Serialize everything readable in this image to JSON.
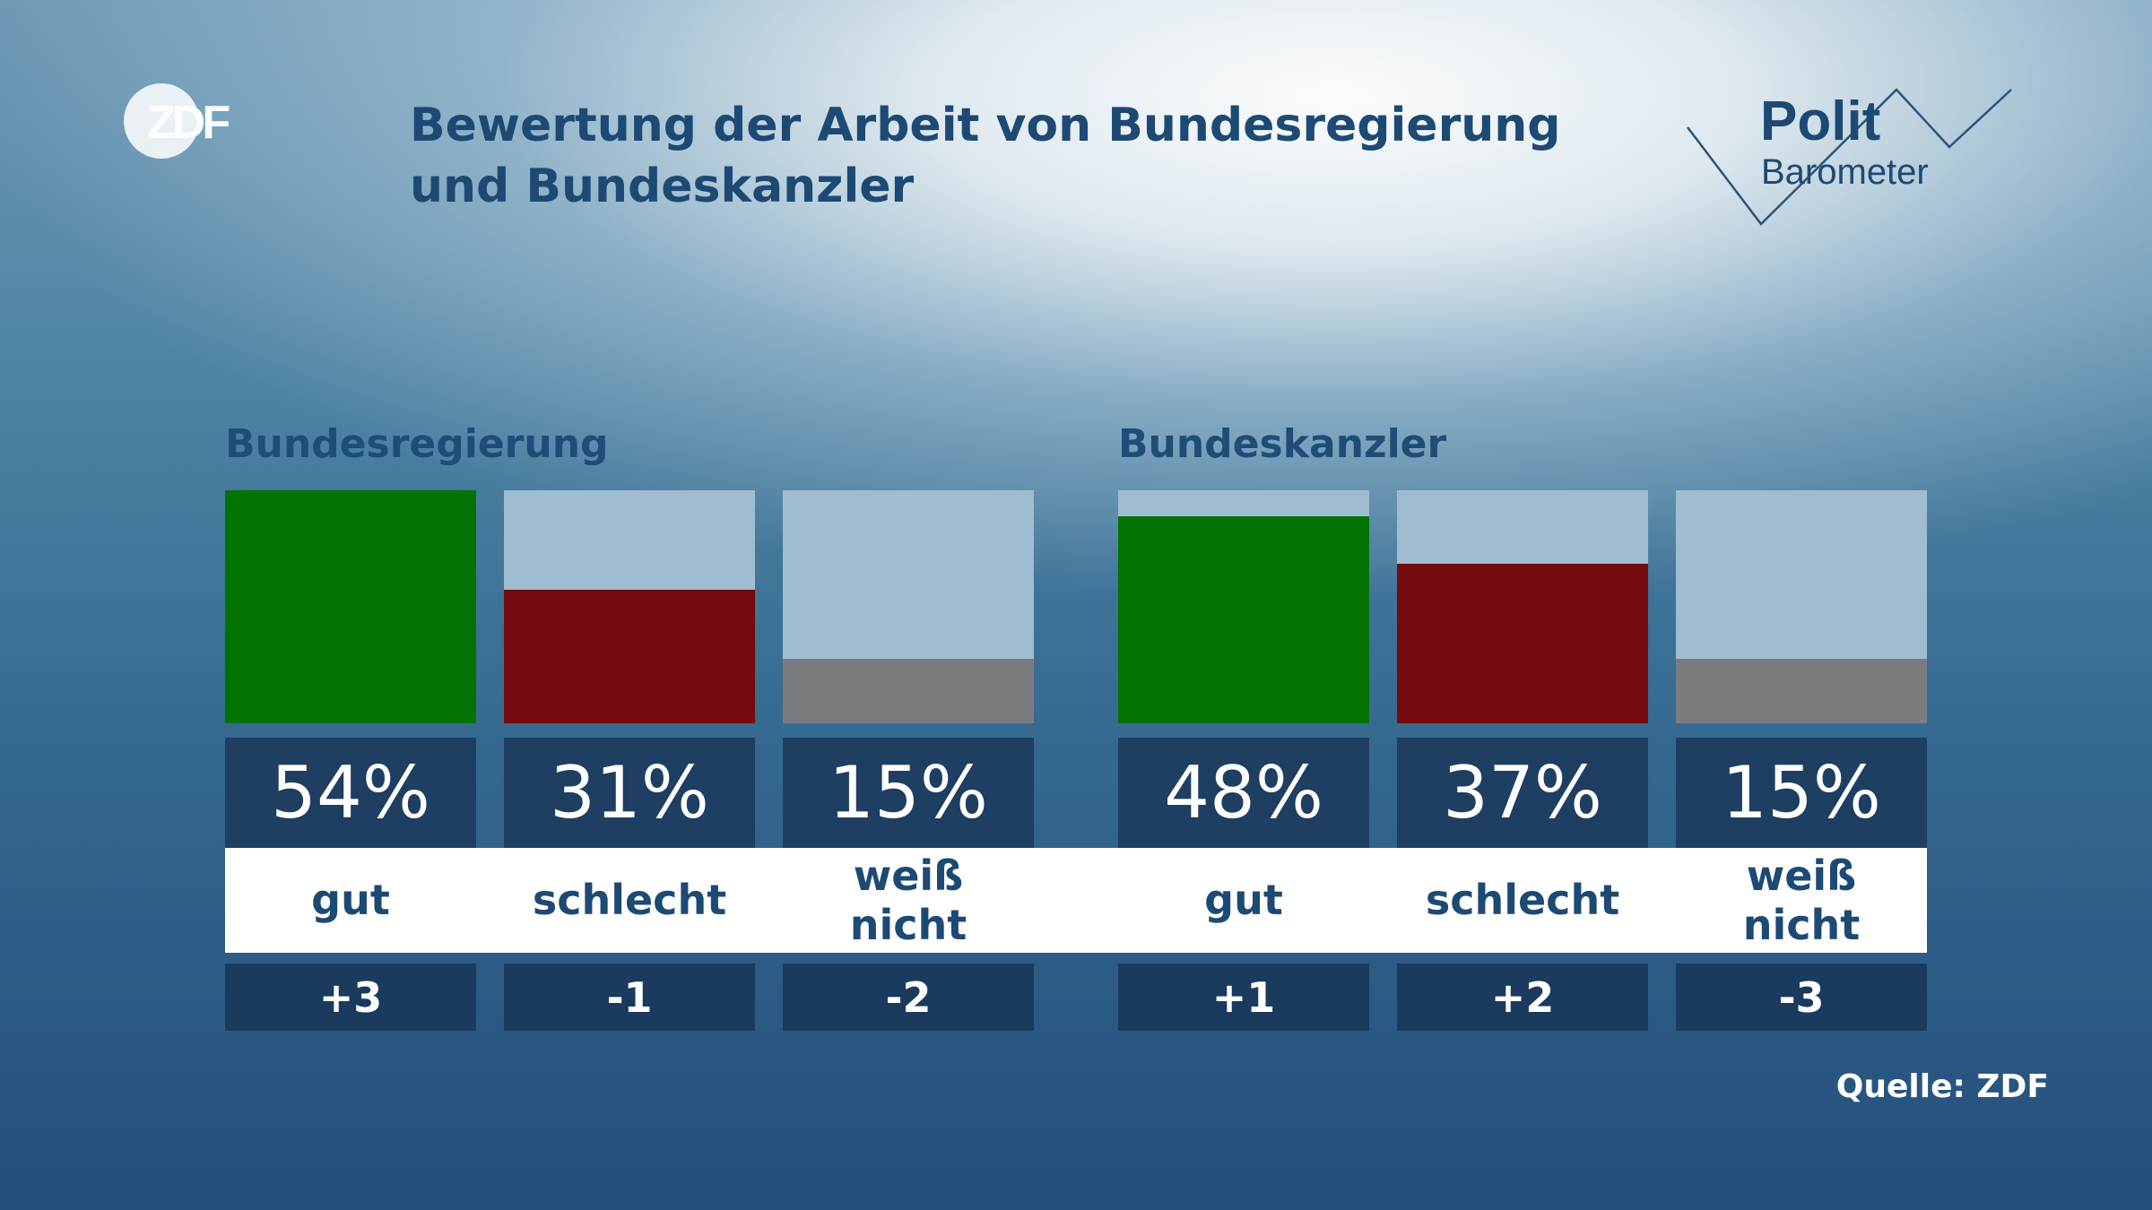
{
  "logo": {
    "zdf_text": "ZDF"
  },
  "title": "Bewertung der Arbeit von Bundesregierung und Bundeskanzler",
  "politbarometer": {
    "line1": "Polit",
    "line2": "Barometer"
  },
  "colors": {
    "gut": "#027302",
    "schlecht": "#730b0f",
    "weiss_nicht": "#7b7c7f",
    "track": "#9fbdd0",
    "value_box": "#1e3e62",
    "text_dark": "#1d4a74"
  },
  "chart_data": {
    "type": "bar",
    "title": "Bewertung der Arbeit von Bundesregierung und Bundeskanzler",
    "groups": [
      {
        "name": "Bundesregierung",
        "categories": [
          "gut",
          "schlecht",
          "weiß\nnicht"
        ],
        "values": [
          54,
          31,
          15
        ],
        "value_labels": [
          "54%",
          "31%",
          "15%"
        ],
        "changes": [
          "+3",
          "-1",
          "-2"
        ]
      },
      {
        "name": "Bundeskanzler",
        "categories": [
          "gut",
          "schlecht",
          "weiß\nnicht"
        ],
        "values": [
          48,
          37,
          15
        ],
        "value_labels": [
          "48%",
          "37%",
          "15%"
        ],
        "changes": [
          "+1",
          "+2",
          "-3"
        ]
      }
    ],
    "ylim": [
      0,
      54
    ]
  },
  "source": "Quelle: ZDF"
}
